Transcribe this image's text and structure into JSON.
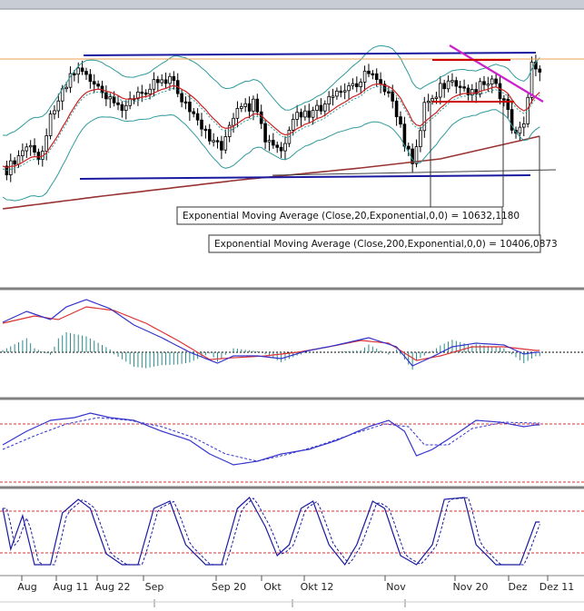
{
  "chart_data": {
    "type": "candlestick",
    "price_panel": {
      "annotations": [
        "Exponential Moving Average (Close,20,Exponential,0,0) = 10632,1180",
        "Exponential Moving Average (Close,200,Exponential,0,0) = 10406,0873"
      ]
    },
    "x_tick_labels": [
      "Aug",
      "Aug 11",
      "Aug 22",
      "Sep",
      "Sep 20",
      "Okt",
      "Okt 12",
      "Nov",
      "Nov 20",
      "Dez",
      "Dez 11"
    ],
    "indicator_panels": [
      "macd",
      "rsi",
      "stochastic"
    ],
    "colors": {
      "bullish_candle": "#ffffff",
      "bearish_candle": "#000000",
      "ema20": "#cc2222",
      "ema200": "#993333",
      "bollinger": "#2f9a9a",
      "channel_lines": "#1a1aa0",
      "trendline": "#cc22cc",
      "resistance_box": "#cc0000",
      "macd_line": "#3333cc",
      "signal_line": "#dd3333",
      "histogram": "#2a8a8a",
      "reference_level": "#dd3333",
      "panel_separator": "#808080"
    }
  }
}
